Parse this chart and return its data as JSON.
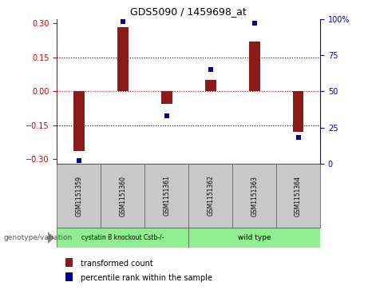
{
  "title": "GDS5090 / 1459698_at",
  "samples": [
    "GSM1151359",
    "GSM1151360",
    "GSM1151361",
    "GSM1151362",
    "GSM1151363",
    "GSM1151364"
  ],
  "transformed_counts": [
    -0.265,
    0.285,
    -0.055,
    0.05,
    0.22,
    -0.18
  ],
  "percentile_ranks": [
    2,
    98,
    33,
    65,
    97,
    18
  ],
  "group1_label": "cystatin B knockout Cstb-/-",
  "group2_label": "wild type",
  "group1_color": "#90EE90",
  "group2_color": "#90EE90",
  "ylim_left": [
    -0.32,
    0.32
  ],
  "ylim_right": [
    0,
    107
  ],
  "yticks_left": [
    -0.3,
    -0.15,
    0,
    0.15,
    0.3
  ],
  "yticks_right": [
    0,
    25,
    50,
    75,
    100
  ],
  "bar_color": "#8B1A1A",
  "dot_color": "#00008B",
  "hline_zero_color": "#cc0000",
  "hline_other_color": "#000000",
  "bg_color": "#ffffff",
  "sample_box_color": "#c8c8c8",
  "legend_red_label": "transformed count",
  "legend_blue_label": "percentile rank within the sample",
  "genotype_label": "genotype/variation",
  "bar_width": 0.25
}
